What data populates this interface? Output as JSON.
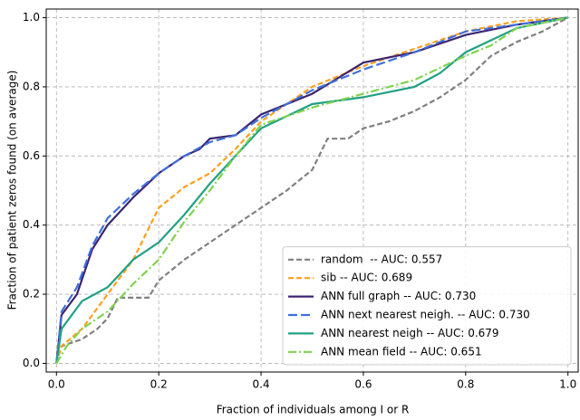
{
  "chart_data": {
    "type": "line",
    "xlabel": "Fraction of individuals among I or R",
    "ylabel": "Fraction of patient zeros found (on average)",
    "xlim": [
      -0.02,
      1.02
    ],
    "ylim": [
      -0.025,
      1.025
    ],
    "xticks": [
      {
        "value": 0,
        "label": "0.0"
      },
      0.2,
      0.4,
      0.6,
      0.8,
      {
        "value": 1,
        "label": "1.0"
      }
    ],
    "yticks": [
      {
        "value": 0,
        "label": "0.0"
      },
      0.2,
      0.4,
      0.6,
      0.8,
      {
        "value": 1,
        "label": "1.0"
      }
    ],
    "grid": true,
    "legend": "lower right",
    "series": [
      {
        "name": "random  -- AUC: 0.557",
        "color": "#808080",
        "linestyle": "dashed",
        "x": [
          0,
          0.01,
          0.05,
          0.08,
          0.1,
          0.12,
          0.18,
          0.2,
          0.25,
          0.3,
          0.35,
          0.4,
          0.45,
          0.5,
          0.53,
          0.57,
          0.6,
          0.65,
          0.7,
          0.75,
          0.8,
          0.85,
          0.9,
          0.95,
          1
        ],
        "values": [
          0,
          0.05,
          0.07,
          0.1,
          0.13,
          0.19,
          0.19,
          0.24,
          0.3,
          0.35,
          0.4,
          0.45,
          0.5,
          0.56,
          0.65,
          0.65,
          0.68,
          0.7,
          0.73,
          0.77,
          0.82,
          0.89,
          0.93,
          0.96,
          1
        ]
      },
      {
        "name": "sib -- AUC: 0.689",
        "color": "#ffa020",
        "linestyle": "dashed",
        "x": [
          0,
          0.01,
          0.05,
          0.1,
          0.15,
          0.2,
          0.25,
          0.3,
          0.35,
          0.4,
          0.5,
          0.6,
          0.7,
          0.8,
          0.9,
          1
        ],
        "values": [
          0,
          0.05,
          0.1,
          0.2,
          0.3,
          0.45,
          0.51,
          0.55,
          0.62,
          0.7,
          0.8,
          0.86,
          0.91,
          0.96,
          0.99,
          1
        ]
      },
      {
        "name": "ANN full graph -- AUC: 0.730",
        "color": "#3b2470",
        "linestyle": "solid",
        "x": [
          0,
          0.01,
          0.04,
          0.07,
          0.1,
          0.15,
          0.2,
          0.25,
          0.28,
          0.3,
          0.35,
          0.4,
          0.5,
          0.6,
          0.7,
          0.8,
          0.9,
          1
        ],
        "values": [
          0,
          0.14,
          0.2,
          0.33,
          0.4,
          0.48,
          0.55,
          0.6,
          0.62,
          0.65,
          0.66,
          0.72,
          0.78,
          0.87,
          0.9,
          0.95,
          0.98,
          1
        ]
      },
      {
        "name": "ANN next nearest neigh. -- AUC: 0.730",
        "color": "#3f70dd",
        "linestyle": "longdash",
        "x": [
          0,
          0.01,
          0.04,
          0.07,
          0.1,
          0.15,
          0.2,
          0.25,
          0.3,
          0.35,
          0.4,
          0.5,
          0.6,
          0.7,
          0.8,
          0.9,
          1
        ],
        "values": [
          0,
          0.15,
          0.22,
          0.34,
          0.42,
          0.49,
          0.55,
          0.6,
          0.64,
          0.66,
          0.71,
          0.79,
          0.85,
          0.9,
          0.96,
          0.98,
          1
        ]
      },
      {
        "name": "ANN nearest neigh -- AUC: 0.679",
        "color": "#22a085",
        "linestyle": "solid",
        "x": [
          0,
          0.01,
          0.05,
          0.1,
          0.15,
          0.2,
          0.25,
          0.3,
          0.35,
          0.4,
          0.5,
          0.6,
          0.7,
          0.75,
          0.8,
          0.9,
          1
        ],
        "values": [
          0,
          0.1,
          0.18,
          0.22,
          0.3,
          0.35,
          0.43,
          0.52,
          0.6,
          0.68,
          0.75,
          0.77,
          0.8,
          0.84,
          0.9,
          0.97,
          1
        ]
      },
      {
        "name": "ANN mean field -- AUC: 0.651",
        "color": "#7fd34e",
        "linestyle": "dashdot",
        "x": [
          0,
          0.02,
          0.05,
          0.1,
          0.15,
          0.2,
          0.25,
          0.3,
          0.35,
          0.4,
          0.5,
          0.6,
          0.7,
          0.8,
          0.85,
          0.9,
          1
        ],
        "values": [
          0,
          0.05,
          0.1,
          0.15,
          0.23,
          0.3,
          0.41,
          0.5,
          0.6,
          0.69,
          0.74,
          0.78,
          0.82,
          0.89,
          0.92,
          0.97,
          1
        ]
      }
    ]
  }
}
